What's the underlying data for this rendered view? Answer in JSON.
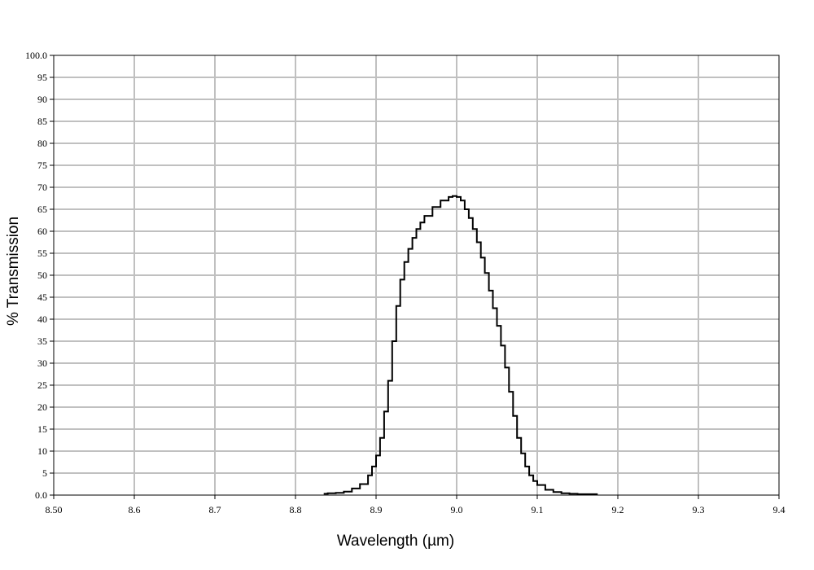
{
  "chart_data": {
    "type": "line",
    "title": "",
    "xlabel": "Wavelength (µm)",
    "ylabel": "% Transmission",
    "xlim": [
      8.5,
      9.4
    ],
    "ylim": [
      0,
      100
    ],
    "grid": true,
    "legend": "none",
    "line_color": "#000000",
    "grid_color": "#c0c0c0",
    "x_ticks": [
      8.5,
      8.6,
      8.7,
      8.8,
      8.9,
      9.0,
      9.1,
      9.2,
      9.3,
      9.4
    ],
    "x_tick_labels": [
      "8.50",
      "8.6",
      "8.7",
      "8.8",
      "8.9",
      "9.0",
      "9.1",
      "9.2",
      "9.3",
      "9.4"
    ],
    "y_ticks": [
      0,
      5,
      10,
      15,
      20,
      25,
      30,
      35,
      40,
      45,
      50,
      55,
      60,
      65,
      70,
      75,
      80,
      85,
      90,
      95,
      100
    ],
    "y_tick_labels": [
      "0.0",
      "5",
      "10",
      "15",
      "20",
      "25",
      "30",
      "35",
      "40",
      "45",
      "50",
      "55",
      "60",
      "65",
      "70",
      "75",
      "80",
      "85",
      "90",
      "95",
      "100.0"
    ],
    "series": [
      {
        "x": [
          8.835,
          8.84,
          8.85,
          8.86,
          8.87,
          8.88,
          8.89,
          8.895,
          8.9,
          8.905,
          8.91,
          8.915,
          8.92,
          8.925,
          8.93,
          8.935,
          8.94,
          8.945,
          8.95,
          8.955,
          8.96,
          8.97,
          8.98,
          8.99,
          8.995,
          9.0,
          9.005,
          9.01,
          9.015,
          9.02,
          9.025,
          9.03,
          9.035,
          9.04,
          9.045,
          9.05,
          9.055,
          9.06,
          9.065,
          9.07,
          9.075,
          9.08,
          9.085,
          9.09,
          9.095,
          9.1,
          9.11,
          9.12,
          9.13,
          9.14,
          9.15,
          9.16,
          9.175
        ],
        "y": [
          0.3,
          0.4,
          0.5,
          0.8,
          1.5,
          2.5,
          4.5,
          6.5,
          9,
          13,
          19,
          26,
          35,
          43,
          49,
          53,
          56,
          58.5,
          60.5,
          62,
          63.5,
          65.5,
          67,
          67.8,
          68,
          67.8,
          67,
          65,
          63,
          60.5,
          57.5,
          54,
          50.5,
          46.5,
          42.5,
          38.5,
          34,
          29,
          23.5,
          18,
          13,
          9.5,
          6.5,
          4.5,
          3.2,
          2.3,
          1.2,
          0.7,
          0.4,
          0.3,
          0.2,
          0.2,
          0.2
        ]
      }
    ]
  }
}
